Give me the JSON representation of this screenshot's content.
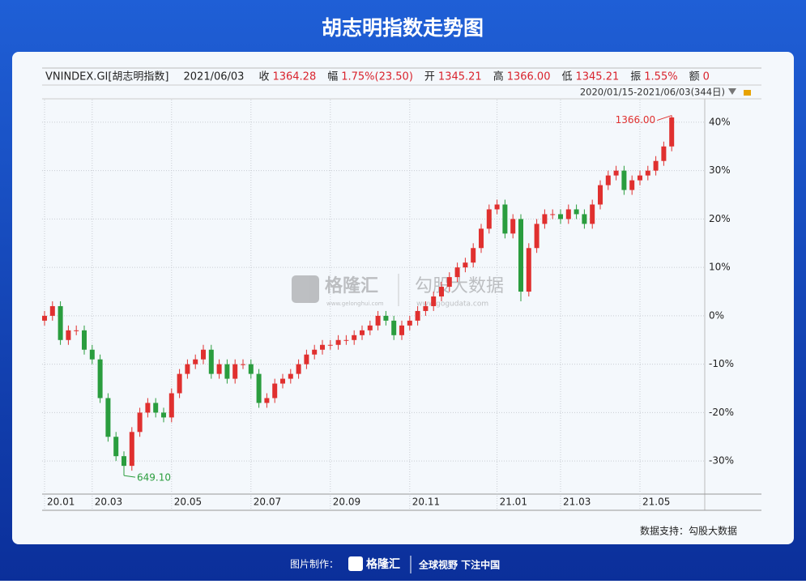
{
  "page_title": "胡志明指数走势图",
  "info": [
    {
      "label": "VNINDEX.GI[胡志明指数]"
    },
    {
      "label": "2021/06/03"
    },
    {
      "label": "收",
      "value": "1364.28"
    },
    {
      "label": "幅",
      "value": "1.75%(23.50)"
    },
    {
      "label": "开",
      "value": "1345.21"
    },
    {
      "label": "高",
      "value": "1366.00"
    },
    {
      "label": "低",
      "value": "1345.21"
    },
    {
      "label": "振",
      "value": "1.55%"
    },
    {
      "label": "额",
      "value": "0"
    }
  ],
  "range_text": "2020/01/15-2021/06/03(344日)",
  "watermark": {
    "brand": "格隆汇",
    "brand_url": "www.gelonghui.com",
    "data": "勾股大数据",
    "data_url": "www.gogudata.com"
  },
  "source": "数据支持：勾股大数据",
  "footer": {
    "made_by": "图片制作：",
    "brand": "格隆汇",
    "slogan": "全球视野 下注中国"
  },
  "chart_data": {
    "type": "candlestick",
    "up_color": "#e0302f",
    "down_color": "#2a9d3e",
    "grid": true,
    "max_label": "1366.00",
    "min_label": "649.10",
    "categories": [
      "20.01",
      null,
      null,
      null,
      null,
      null,
      "20.03",
      null,
      null,
      null,
      null,
      null,
      null,
      null,
      null,
      null,
      "20.05",
      null,
      null,
      null,
      null,
      null,
      null,
      null,
      null,
      null,
      "20.07",
      null,
      null,
      null,
      null,
      null,
      null,
      null,
      null,
      null,
      "20.09",
      null,
      null,
      null,
      null,
      null,
      null,
      null,
      null,
      null,
      "20.11",
      null,
      null,
      null,
      null,
      null,
      null,
      null,
      null,
      null,
      null,
      "21.01",
      null,
      null,
      null,
      null,
      null,
      null,
      null,
      "21.03",
      null,
      null,
      null,
      null,
      null,
      null,
      null,
      null,
      null,
      "21.05",
      null,
      null,
      null,
      null
    ],
    "open": [
      -1,
      0,
      2,
      -5,
      -3,
      -3,
      -7,
      -9,
      -17,
      -25,
      -29,
      -31,
      -24,
      -20,
      -18,
      -20,
      -21,
      -16,
      -12,
      -10,
      -9,
      -7,
      -12,
      -10,
      -13,
      -10,
      -10,
      -12,
      -18,
      -17,
      -14,
      -13,
      -12,
      -10,
      -8,
      -7,
      -6,
      -6,
      -5,
      -5,
      -4,
      -3,
      -2,
      0,
      -1,
      -4,
      -2,
      -1,
      1,
      2,
      4,
      6,
      8,
      10,
      11,
      14,
      18,
      22,
      23,
      17,
      20,
      5,
      14,
      19,
      21,
      21,
      20,
      22,
      21,
      19,
      23,
      27,
      29,
      30,
      26,
      28,
      29,
      30,
      32,
      35
    ],
    "high": [
      1,
      3,
      3,
      -2,
      -2,
      -2,
      -6,
      -8,
      -16,
      -24,
      -28,
      -23,
      -19,
      -17,
      -17,
      -19,
      -15,
      -11,
      -9,
      -8,
      -6,
      -6,
      -9,
      -9,
      -9,
      -9,
      -9,
      -11,
      -16,
      -13,
      -12,
      -11,
      -9,
      -7,
      -6,
      -5,
      -5,
      -4,
      -4,
      -3,
      -2,
      -1,
      1,
      1,
      0,
      -1,
      0,
      2,
      3,
      5,
      7,
      9,
      11,
      12,
      15,
      19,
      23,
      24,
      24,
      21,
      21,
      15,
      20,
      22,
      22,
      22,
      23,
      23,
      22,
      24,
      28,
      30,
      31,
      31,
      29,
      30,
      31,
      33,
      36,
      41.4
    ],
    "low": [
      -2,
      -1,
      -6,
      -6,
      -4,
      -8,
      -10,
      -18,
      -26,
      -30,
      -33,
      -32,
      -25,
      -21,
      -21,
      -22,
      -22,
      -17,
      -13,
      -11,
      -10,
      -13,
      -13,
      -14,
      -14,
      -11,
      -13,
      -19,
      -19,
      -18,
      -15,
      -14,
      -13,
      -11,
      -9,
      -8,
      -7,
      -7,
      -6,
      -6,
      -5,
      -4,
      -3,
      -2,
      -5,
      -5,
      -3,
      -2,
      0,
      1,
      3,
      5,
      7,
      9,
      10,
      13,
      17,
      21,
      16,
      16,
      3,
      4,
      13,
      18,
      20,
      19,
      19,
      20,
      18,
      18,
      22,
      26,
      28,
      25,
      25,
      27,
      28,
      29,
      31,
      34
    ],
    "close": [
      0,
      2,
      -5,
      -3,
      -3,
      -7,
      -9,
      -17,
      -25,
      -29,
      -31,
      -24,
      -20,
      -18,
      -20,
      -21,
      -16,
      -12,
      -10,
      -9,
      -7,
      -12,
      -10,
      -13,
      -10,
      -10,
      -12,
      -18,
      -17,
      -14,
      -13,
      -12,
      -10,
      -8,
      -7,
      -6,
      -6,
      -5,
      -5,
      -4,
      -3,
      -2,
      0,
      -1,
      -4,
      -2,
      -1,
      1,
      2,
      4,
      6,
      8,
      10,
      11,
      14,
      18,
      22,
      23,
      17,
      20,
      5,
      14,
      19,
      21,
      21,
      20,
      22,
      21,
      19,
      23,
      27,
      29,
      30,
      26,
      28,
      29,
      30,
      32,
      35,
      41
    ],
    "ylim": [
      -36,
      43
    ],
    "yticks": [
      {
        "value": 40,
        "label": "40%"
      },
      {
        "value": 30,
        "label": "30%"
      },
      {
        "value": 20,
        "label": "20%"
      },
      {
        "value": 10,
        "label": "10%"
      },
      {
        "value": 0,
        "label": "0%"
      },
      {
        "value": -10,
        "label": "-10%"
      },
      {
        "value": -20,
        "label": "-20%"
      },
      {
        "value": -30,
        "label": "-30%"
      }
    ]
  }
}
